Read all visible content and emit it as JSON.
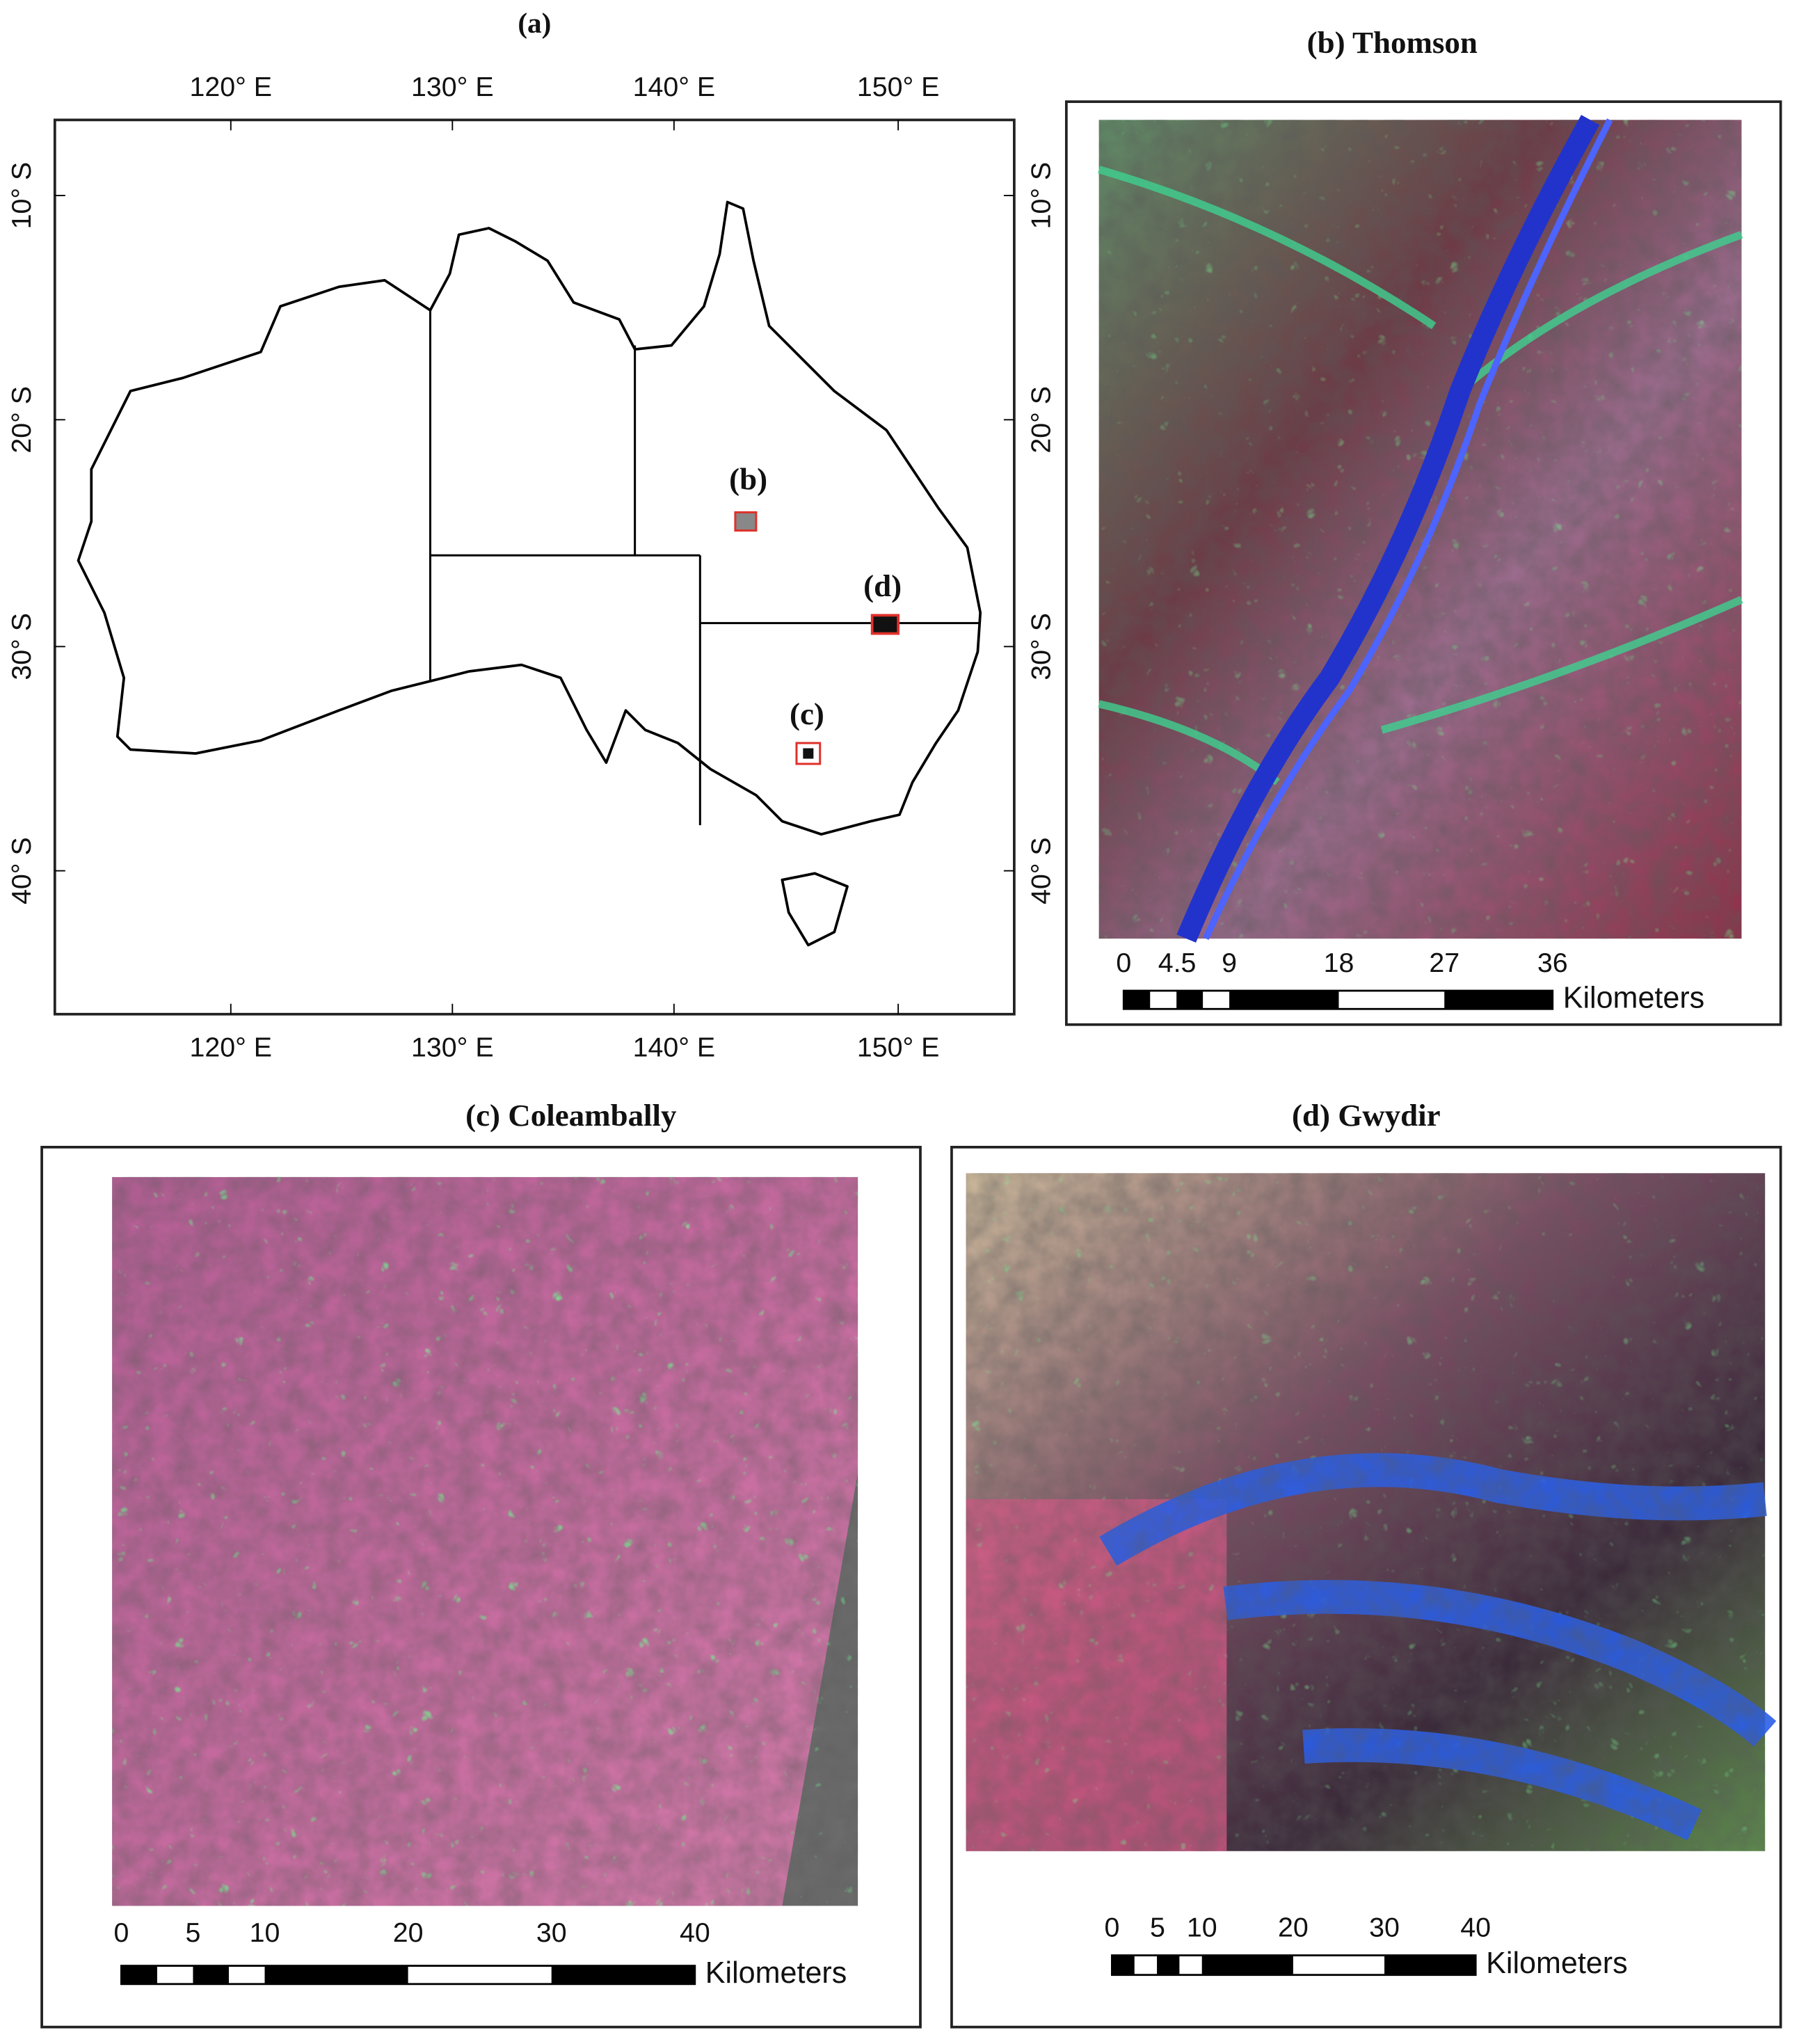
{
  "panel_a": {
    "title": "(a)",
    "longitude_labels": [
      "120° E",
      "130° E",
      "140° E",
      "150° E"
    ],
    "latitude_labels": [
      "10° S",
      "20° S",
      "30° S",
      "40° S"
    ],
    "site_labels": [
      "(b)",
      "(d)",
      "(c)"
    ]
  },
  "panel_b": {
    "title": "(b) Thomson",
    "latitude_labels": [
      "10° S",
      "20° S",
      "30° S",
      "40° S"
    ],
    "scale_labels": [
      "0",
      "4.5",
      "9",
      "18",
      "27",
      "36"
    ],
    "scale_unit": "Kilometers"
  },
  "panel_c": {
    "title": "(c) Coleambally",
    "scale_labels": [
      "0",
      "5",
      "10",
      "20",
      "30",
      "40"
    ],
    "scale_unit": "Kilometers"
  },
  "panel_d": {
    "title": "(d) Gwydir",
    "scale_labels": [
      "0",
      "5",
      "10",
      "20",
      "30",
      "40"
    ],
    "scale_unit": "Kilometers"
  }
}
